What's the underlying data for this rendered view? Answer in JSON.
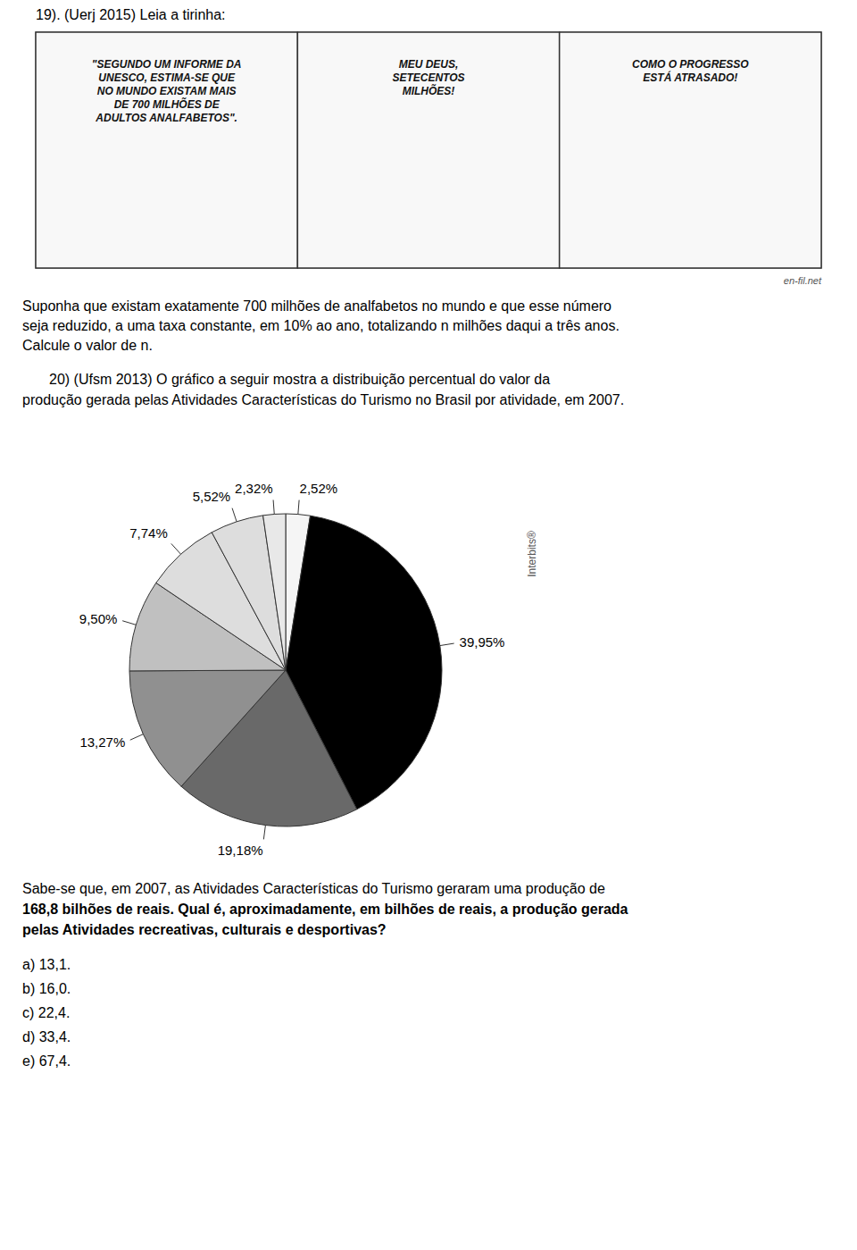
{
  "chart_data": {
    "type": "pie",
    "values": [
      2.52,
      39.95,
      19.18,
      13.27,
      9.5,
      7.74,
      5.52,
      2.32
    ],
    "value_labels": [
      "2,52%",
      "39,95%",
      "19,18%",
      "13,27%",
      "9,50%",
      "7,74%",
      "5,52%",
      "2,32%"
    ],
    "colors": [
      "#f5f5f5",
      "#000000",
      "#696969",
      "#909090",
      "#c0c0c0",
      "#dddddd",
      "#dddddd",
      "#e8e8e8"
    ],
    "data_labels": true
  },
  "page": {
    "title_q19": "19). (Uerj 2015)  Leia a tirinha:",
    "comic_panels": [
      "\"SEGUNDO UM INFORME DA\nUNESCO, ESTIMA-SE QUE\nNO MUNDO EXISTAM MAIS\nDE 700 MILHÕES DE\nADULTOS ANALFABETOS\".",
      "MEU DEUS,\nSETECENTOS\nMILHÕES!",
      "COMO O PROGRESSO\nESTÁ ATRASADO!"
    ],
    "watermark": "en-fil.net",
    "paragraph1": "Suponha que existam exatamente 700  milhões de analfabetos no mundo e que esse número\nseja reduzido, a uma taxa constante, em 10% ao ano, totalizando  n  milhões daqui a três anos.\nCalcule o valor de  n.",
    "title_q20": [
      "20) (Ufsm 2013)  O gráfico a seguir mostra a distribuição percentual do valor da",
      "produção gerada pelas Atividades Características do Turismo no Brasil por atividade, em 2007."
    ],
    "interbits": "Interbits®",
    "bottom_text": [
      "Sabe-se que, em 2007, as Atividades Características do Turismo geraram uma produção de",
      "168,8 bilhões de reais. Qual é, aproximadamente, em bilhões de reais, a produção gerada",
      "pelas Atividades recreativas, culturais e desportivas?"
    ],
    "answers": [
      "a) 13,1.",
      "b) 16,0.",
      "c) 22,4.",
      "d) 33,4.",
      "e) 67,4."
    ]
  }
}
